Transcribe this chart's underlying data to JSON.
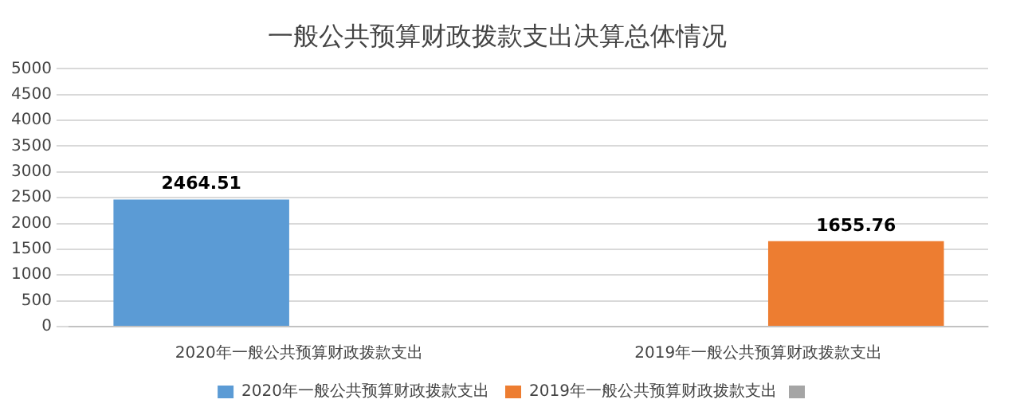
{
  "chart_data": {
    "type": "bar",
    "title": "一般公共预算财政拨款支出决算总体情况",
    "categories": [
      "2020年一般公共预算财政拨款支出",
      "2019年一般公共预算财政拨款支出"
    ],
    "series": [
      {
        "name": "2020年一般公共预算财政拨款支出",
        "color": "#5b9bd5",
        "values": [
          2464.51,
          null
        ]
      },
      {
        "name": "2019年一般公共预算财政拨款支出",
        "color": "#ed7d31",
        "values": [
          null,
          1655.76
        ]
      }
    ],
    "ylim": [
      0,
      5000
    ],
    "yticks": [
      0,
      500,
      1000,
      1500,
      2000,
      2500,
      3000,
      3500,
      4000,
      4500,
      5000
    ],
    "grid": "y",
    "legend": "bottom",
    "data_labels": true
  }
}
